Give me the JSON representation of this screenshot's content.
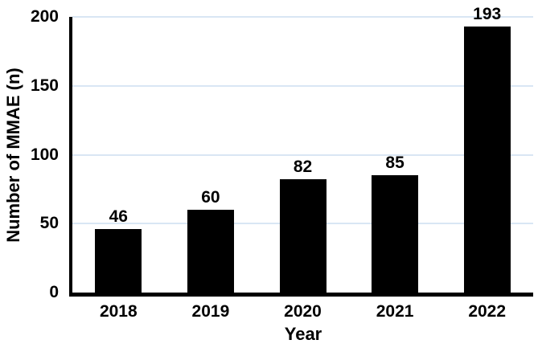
{
  "chart_data": {
    "type": "bar",
    "categories": [
      "2018",
      "2019",
      "2020",
      "2021",
      "2022"
    ],
    "values": [
      46,
      60,
      82,
      85,
      193
    ],
    "data_labels": [
      "46",
      "60",
      "82",
      "85",
      "193"
    ],
    "title": "",
    "xlabel": "Year",
    "ylabel": "Number of MMAE (n)",
    "ylim": [
      0,
      200
    ],
    "yticks": [
      0,
      50,
      100,
      150,
      200
    ],
    "grid": true,
    "legend_position": "none",
    "bar_color": "#000000",
    "gridline_color": "#d9e6f4",
    "axis_color": "#000000",
    "text_color": "#000000",
    "background": "#ffffff"
  }
}
